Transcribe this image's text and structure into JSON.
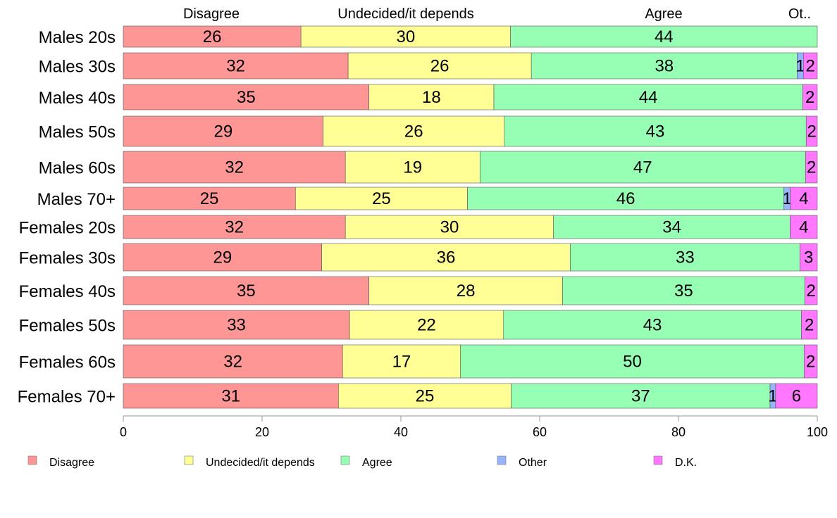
{
  "chart_data": {
    "type": "bar",
    "orientation": "horizontal",
    "stacked": true,
    "title": "",
    "xlabel": "",
    "ylabel": "",
    "xlim": [
      0,
      100
    ],
    "x_ticks": [
      "0",
      "20",
      "40",
      "60",
      "80",
      "100"
    ],
    "top_labels": [
      "Disagree",
      "Undecided/it depends",
      "Agree",
      "Ot.."
    ],
    "categories": [
      "Males 20s",
      "Males 30s",
      "Males 40s",
      "Males 50s",
      "Males 60s",
      "Males 70+",
      "Females 20s",
      "Females 30s",
      "Females 40s",
      "Females 50s",
      "Females 60s",
      "Females 70+"
    ],
    "series": [
      {
        "name": "Disagree",
        "color": "#ff9696",
        "values": [
          25.6,
          32.4,
          35.4,
          28.8,
          32.0,
          24.8,
          32.0,
          28.6,
          35.4,
          32.6,
          31.6,
          31.0
        ]
      },
      {
        "name": "Undecided/it depends",
        "color": "#ffff96",
        "values": [
          30.2,
          26.4,
          18.0,
          26.1,
          19.4,
          24.8,
          30.0,
          35.8,
          27.9,
          22.2,
          17.0,
          24.9
        ]
      },
      {
        "name": "Agree",
        "color": "#96ffb4",
        "values": [
          44.2,
          38.3,
          44.5,
          43.5,
          46.9,
          45.6,
          34.1,
          33.1,
          34.9,
          42.9,
          49.5,
          37.3
        ]
      },
      {
        "name": "Other",
        "color": "#96b4ff",
        "values": [
          0.0,
          0.9,
          0.0,
          0.0,
          0.0,
          0.9,
          0.0,
          0.0,
          0.0,
          0.0,
          0.0,
          0.8
        ]
      },
      {
        "name": "D.K.",
        "color": "#ff78ff",
        "values": [
          0.0,
          2.0,
          2.1,
          1.6,
          1.7,
          3.9,
          3.9,
          2.5,
          1.8,
          2.3,
          1.9,
          6.0
        ]
      }
    ],
    "data_labels": [
      [
        "26",
        "30",
        "44",
        "",
        ""
      ],
      [
        "32",
        "26",
        "38",
        "1",
        "2"
      ],
      [
        "35",
        "18",
        "44",
        "",
        "2"
      ],
      [
        "29",
        "26",
        "43",
        "",
        "2"
      ],
      [
        "32",
        "19",
        "47",
        "",
        "2"
      ],
      [
        "25",
        "25",
        "46",
        "1",
        "4"
      ],
      [
        "32",
        "30",
        "34",
        "",
        "4"
      ],
      [
        "29",
        "36",
        "33",
        "",
        "3"
      ],
      [
        "35",
        "28",
        "35",
        "",
        "2"
      ],
      [
        "33",
        "22",
        "43",
        "",
        "2"
      ],
      [
        "32",
        "17",
        "50",
        "",
        "2"
      ],
      [
        "31",
        "25",
        "37",
        "1",
        "6"
      ]
    ],
    "legend": {
      "position": "bottom",
      "entries": [
        {
          "label": "Disagree",
          "color": "#ff9696"
        },
        {
          "label": "Undecided/it depends",
          "color": "#ffff96"
        },
        {
          "label": "Agree",
          "color": "#96ffb4"
        },
        {
          "label": "Other",
          "color": "#96b4ff"
        },
        {
          "label": "D.K.",
          "color": "#ff78ff"
        }
      ]
    },
    "grid": false
  }
}
